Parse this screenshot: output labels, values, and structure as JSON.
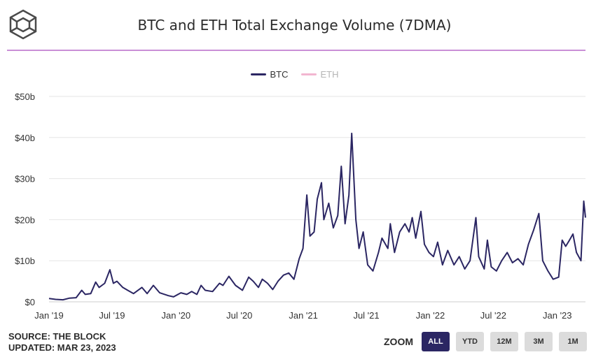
{
  "header": {
    "title": "BTC and ETH Total Exchange Volume (7DMA)",
    "logo_icon": "cube-logo-icon"
  },
  "legend": [
    {
      "label": "BTC",
      "color": "#2b2663",
      "active": true
    },
    {
      "label": "ETH",
      "color": "#f2b6d0",
      "active": false
    }
  ],
  "footer": {
    "source": "SOURCE: THE BLOCK",
    "updated": "UPDATED: MAR 23, 2023"
  },
  "zoom": {
    "label": "ZOOM",
    "buttons": [
      "ALL",
      "YTD",
      "12M",
      "3M",
      "1M"
    ],
    "active": "ALL"
  },
  "colors": {
    "btc": "#2b2663",
    "eth": "#f2b6d0",
    "accent_rule": "#c98fd6",
    "grid": "#e6e6e6"
  },
  "chart_data": {
    "type": "line",
    "title": "BTC and ETH Total Exchange Volume (7DMA)",
    "y_unit": "billions USD",
    "ylim": [
      0,
      50
    ],
    "yticks": [
      {
        "value": 0,
        "label": "$0"
      },
      {
        "value": 10,
        "label": "$10b"
      },
      {
        "value": 20,
        "label": "$20b"
      },
      {
        "value": 30,
        "label": "$30b"
      },
      {
        "value": 40,
        "label": "$40b"
      },
      {
        "value": 50,
        "label": "$50b"
      }
    ],
    "xlim": [
      "2019-01-01",
      "2023-03-23"
    ],
    "xticks": [
      {
        "date": "2019-01-01",
        "label": "Jan '19"
      },
      {
        "date": "2019-07-01",
        "label": "Jul '19"
      },
      {
        "date": "2020-01-01",
        "label": "Jan '20"
      },
      {
        "date": "2020-07-01",
        "label": "Jul '20"
      },
      {
        "date": "2021-01-01",
        "label": "Jan '21"
      },
      {
        "date": "2021-07-01",
        "label": "Jul '21"
      },
      {
        "date": "2022-01-01",
        "label": "Jan '22"
      },
      {
        "date": "2022-07-01",
        "label": "Jul '22"
      },
      {
        "date": "2023-01-01",
        "label": "Jan '23"
      }
    ],
    "grid": true,
    "legend_position": "top-center",
    "series": [
      {
        "name": "BTC",
        "color": "#2b2663",
        "points": [
          [
            "2019-01-01",
            0.8
          ],
          [
            "2019-01-20",
            0.6
          ],
          [
            "2019-02-10",
            0.5
          ],
          [
            "2019-03-01",
            0.9
          ],
          [
            "2019-03-20",
            1.0
          ],
          [
            "2019-04-05",
            2.8
          ],
          [
            "2019-04-15",
            1.8
          ],
          [
            "2019-05-01",
            2.0
          ],
          [
            "2019-05-15",
            4.8
          ],
          [
            "2019-05-25",
            3.5
          ],
          [
            "2019-06-10",
            4.5
          ],
          [
            "2019-06-25",
            7.8
          ],
          [
            "2019-07-05",
            4.5
          ],
          [
            "2019-07-15",
            5.0
          ],
          [
            "2019-08-01",
            3.5
          ],
          [
            "2019-08-15",
            2.8
          ],
          [
            "2019-09-01",
            2.0
          ],
          [
            "2019-09-25",
            3.5
          ],
          [
            "2019-10-10",
            2.0
          ],
          [
            "2019-10-28",
            4.0
          ],
          [
            "2019-11-15",
            2.2
          ],
          [
            "2019-12-10",
            1.5
          ],
          [
            "2019-12-25",
            1.2
          ],
          [
            "2020-01-15",
            2.2
          ],
          [
            "2020-02-01",
            1.8
          ],
          [
            "2020-02-15",
            2.5
          ],
          [
            "2020-03-01",
            1.8
          ],
          [
            "2020-03-13",
            4.0
          ],
          [
            "2020-03-25",
            2.8
          ],
          [
            "2020-04-15",
            2.5
          ],
          [
            "2020-05-05",
            4.5
          ],
          [
            "2020-05-15",
            4.0
          ],
          [
            "2020-06-01",
            6.2
          ],
          [
            "2020-06-20",
            4.0
          ],
          [
            "2020-07-10",
            2.8
          ],
          [
            "2020-07-28",
            6.0
          ],
          [
            "2020-08-10",
            5.0
          ],
          [
            "2020-08-25",
            3.5
          ],
          [
            "2020-09-05",
            5.5
          ],
          [
            "2020-09-20",
            4.5
          ],
          [
            "2020-10-05",
            3.0
          ],
          [
            "2020-10-20",
            5.0
          ],
          [
            "2020-11-05",
            6.5
          ],
          [
            "2020-11-20",
            7.0
          ],
          [
            "2020-12-05",
            5.5
          ],
          [
            "2020-12-20",
            10.5
          ],
          [
            "2020-12-31",
            13.0
          ],
          [
            "2021-01-11",
            26.0
          ],
          [
            "2021-01-20",
            16.0
          ],
          [
            "2021-02-01",
            17.0
          ],
          [
            "2021-02-10",
            25.0
          ],
          [
            "2021-02-22",
            29.0
          ],
          [
            "2021-03-01",
            20.0
          ],
          [
            "2021-03-15",
            24.0
          ],
          [
            "2021-03-28",
            18.0
          ],
          [
            "2021-04-10",
            21.0
          ],
          [
            "2021-04-20",
            33.0
          ],
          [
            "2021-05-01",
            19.0
          ],
          [
            "2021-05-12",
            26.0
          ],
          [
            "2021-05-20",
            41.0
          ],
          [
            "2021-06-01",
            20.0
          ],
          [
            "2021-06-10",
            13.0
          ],
          [
            "2021-06-22",
            17.0
          ],
          [
            "2021-07-05",
            9.0
          ],
          [
            "2021-07-20",
            7.5
          ],
          [
            "2021-08-05",
            12.0
          ],
          [
            "2021-08-15",
            15.5
          ],
          [
            "2021-09-01",
            13.0
          ],
          [
            "2021-09-08",
            19.0
          ],
          [
            "2021-09-20",
            12.0
          ],
          [
            "2021-10-05",
            17.0
          ],
          [
            "2021-10-20",
            19.0
          ],
          [
            "2021-11-01",
            17.0
          ],
          [
            "2021-11-10",
            20.5
          ],
          [
            "2021-11-20",
            15.5
          ],
          [
            "2021-12-05",
            22.0
          ],
          [
            "2021-12-15",
            14.0
          ],
          [
            "2021-12-28",
            12.0
          ],
          [
            "2022-01-10",
            11.0
          ],
          [
            "2022-01-22",
            14.5
          ],
          [
            "2022-02-05",
            9.0
          ],
          [
            "2022-02-20",
            12.5
          ],
          [
            "2022-03-10",
            9.0
          ],
          [
            "2022-03-25",
            11.0
          ],
          [
            "2022-04-10",
            8.0
          ],
          [
            "2022-04-25",
            10.0
          ],
          [
            "2022-05-12",
            20.5
          ],
          [
            "2022-05-20",
            11.0
          ],
          [
            "2022-06-05",
            8.0
          ],
          [
            "2022-06-14",
            15.0
          ],
          [
            "2022-06-25",
            8.5
          ],
          [
            "2022-07-10",
            7.5
          ],
          [
            "2022-07-25",
            10.0
          ],
          [
            "2022-08-10",
            12.0
          ],
          [
            "2022-08-25",
            9.5
          ],
          [
            "2022-09-10",
            10.5
          ],
          [
            "2022-09-25",
            9.0
          ],
          [
            "2022-10-10",
            14.0
          ],
          [
            "2022-10-25",
            17.5
          ],
          [
            "2022-11-09",
            21.5
          ],
          [
            "2022-11-20",
            10.0
          ],
          [
            "2022-12-05",
            7.5
          ],
          [
            "2022-12-20",
            5.5
          ],
          [
            "2023-01-05",
            6.0
          ],
          [
            "2023-01-15",
            15.0
          ],
          [
            "2023-01-25",
            13.5
          ],
          [
            "2023-02-05",
            15.0
          ],
          [
            "2023-02-15",
            16.5
          ],
          [
            "2023-02-25",
            12.0
          ],
          [
            "2023-03-10",
            10.0
          ],
          [
            "2023-03-18",
            24.5
          ],
          [
            "2023-03-23",
            20.5
          ]
        ]
      }
    ]
  }
}
